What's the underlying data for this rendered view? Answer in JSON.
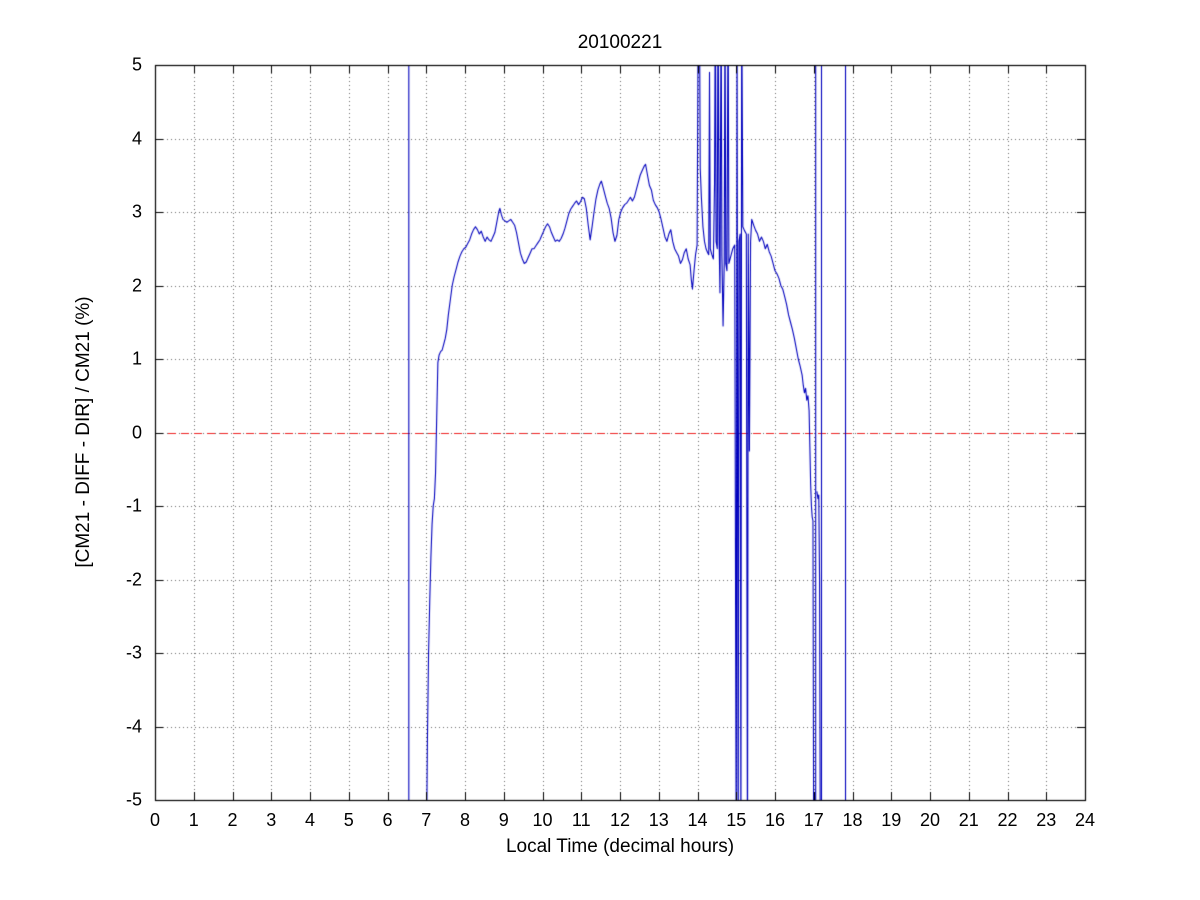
{
  "chart_data": {
    "type": "line",
    "title": "20100221",
    "xlabel": "Local Time (decimal hours)",
    "ylabel": "[CM21 - DIFF - DIR] / CM21 (%)",
    "xlim": [
      0,
      24
    ],
    "ylim": [
      -5,
      5
    ],
    "x_ticks": [
      0,
      1,
      2,
      3,
      4,
      5,
      6,
      7,
      8,
      9,
      10,
      11,
      12,
      13,
      14,
      15,
      16,
      17,
      18,
      19,
      20,
      21,
      22,
      23,
      24
    ],
    "y_ticks": [
      -5,
      -4,
      -3,
      -2,
      -1,
      0,
      1,
      2,
      3,
      4,
      5
    ],
    "grid": "dotted",
    "grid_color": "#666666",
    "axis_color": "#000000",
    "background": "#ffffff",
    "legend": "none",
    "zero_line": {
      "y": 0,
      "color": "#ee2222",
      "style": "dashed"
    },
    "vertical_spikes": {
      "color": "#0000bd",
      "x": [
        6.55,
        17.05,
        17.2,
        17.82
      ]
    },
    "series": [
      {
        "name": "(CM21 - DIFF - DIR) / CM21 percent difference",
        "color": "#0000bd",
        "points": [
          [
            7.0,
            -6
          ],
          [
            7.03,
            -4.2
          ],
          [
            7.06,
            -3.0
          ],
          [
            7.09,
            -2.3
          ],
          [
            7.12,
            -1.7
          ],
          [
            7.15,
            -1.25
          ],
          [
            7.18,
            -1.0
          ],
          [
            7.21,
            -0.9
          ],
          [
            7.24,
            -0.55
          ],
          [
            7.27,
            0.2
          ],
          [
            7.3,
            0.95
          ],
          [
            7.33,
            1.05
          ],
          [
            7.37,
            1.1
          ],
          [
            7.41,
            1.12
          ],
          [
            7.45,
            1.2
          ],
          [
            7.49,
            1.28
          ],
          [
            7.53,
            1.4
          ],
          [
            7.57,
            1.6
          ],
          [
            7.62,
            1.8
          ],
          [
            7.67,
            2.0
          ],
          [
            7.72,
            2.12
          ],
          [
            7.77,
            2.22
          ],
          [
            7.82,
            2.32
          ],
          [
            7.87,
            2.4
          ],
          [
            7.92,
            2.46
          ],
          [
            7.97,
            2.5
          ],
          [
            8.02,
            2.52
          ],
          [
            8.07,
            2.57
          ],
          [
            8.12,
            2.62
          ],
          [
            8.17,
            2.7
          ],
          [
            8.22,
            2.76
          ],
          [
            8.27,
            2.8
          ],
          [
            8.32,
            2.76
          ],
          [
            8.37,
            2.7
          ],
          [
            8.42,
            2.74
          ],
          [
            8.47,
            2.66
          ],
          [
            8.52,
            2.6
          ],
          [
            8.57,
            2.66
          ],
          [
            8.62,
            2.62
          ],
          [
            8.67,
            2.6
          ],
          [
            8.72,
            2.66
          ],
          [
            8.77,
            2.72
          ],
          [
            8.82,
            2.86
          ],
          [
            8.87,
            3.0
          ],
          [
            8.9,
            3.05
          ],
          [
            8.94,
            2.96
          ],
          [
            8.98,
            2.9
          ],
          [
            9.03,
            2.88
          ],
          [
            9.08,
            2.86
          ],
          [
            9.13,
            2.88
          ],
          [
            9.18,
            2.9
          ],
          [
            9.23,
            2.86
          ],
          [
            9.28,
            2.82
          ],
          [
            9.33,
            2.72
          ],
          [
            9.38,
            2.58
          ],
          [
            9.43,
            2.44
          ],
          [
            9.48,
            2.36
          ],
          [
            9.53,
            2.3
          ],
          [
            9.58,
            2.32
          ],
          [
            9.63,
            2.38
          ],
          [
            9.68,
            2.44
          ],
          [
            9.73,
            2.5
          ],
          [
            9.78,
            2.5
          ],
          [
            9.83,
            2.54
          ],
          [
            9.88,
            2.58
          ],
          [
            9.93,
            2.62
          ],
          [
            9.98,
            2.68
          ],
          [
            10.03,
            2.74
          ],
          [
            10.08,
            2.8
          ],
          [
            10.13,
            2.84
          ],
          [
            10.18,
            2.8
          ],
          [
            10.23,
            2.72
          ],
          [
            10.28,
            2.66
          ],
          [
            10.33,
            2.6
          ],
          [
            10.38,
            2.62
          ],
          [
            10.43,
            2.6
          ],
          [
            10.48,
            2.64
          ],
          [
            10.53,
            2.7
          ],
          [
            10.58,
            2.78
          ],
          [
            10.63,
            2.88
          ],
          [
            10.68,
            2.98
          ],
          [
            10.73,
            3.04
          ],
          [
            10.78,
            3.08
          ],
          [
            10.83,
            3.12
          ],
          [
            10.88,
            3.15
          ],
          [
            10.93,
            3.1
          ],
          [
            10.98,
            3.14
          ],
          [
            11.03,
            3.2
          ],
          [
            11.08,
            3.18
          ],
          [
            11.13,
            3.05
          ],
          [
            11.18,
            2.82
          ],
          [
            11.23,
            2.62
          ],
          [
            11.28,
            2.8
          ],
          [
            11.33,
            3.0
          ],
          [
            11.38,
            3.18
          ],
          [
            11.43,
            3.3
          ],
          [
            11.48,
            3.38
          ],
          [
            11.52,
            3.42
          ],
          [
            11.57,
            3.32
          ],
          [
            11.62,
            3.22
          ],
          [
            11.67,
            3.12
          ],
          [
            11.72,
            3.05
          ],
          [
            11.77,
            2.92
          ],
          [
            11.82,
            2.72
          ],
          [
            11.87,
            2.6
          ],
          [
            11.92,
            2.68
          ],
          [
            11.97,
            2.9
          ],
          [
            12.02,
            3.0
          ],
          [
            12.07,
            3.06
          ],
          [
            12.12,
            3.1
          ],
          [
            12.17,
            3.12
          ],
          [
            12.22,
            3.16
          ],
          [
            12.27,
            3.2
          ],
          [
            12.32,
            3.15
          ],
          [
            12.37,
            3.2
          ],
          [
            12.42,
            3.3
          ],
          [
            12.47,
            3.4
          ],
          [
            12.52,
            3.5
          ],
          [
            12.57,
            3.56
          ],
          [
            12.62,
            3.62
          ],
          [
            12.66,
            3.65
          ],
          [
            12.71,
            3.5
          ],
          [
            12.76,
            3.36
          ],
          [
            12.81,
            3.3
          ],
          [
            12.86,
            3.16
          ],
          [
            12.91,
            3.1
          ],
          [
            12.96,
            3.06
          ],
          [
            13.01,
            3.0
          ],
          [
            13.06,
            2.9
          ],
          [
            13.11,
            2.78
          ],
          [
            13.16,
            2.66
          ],
          [
            13.21,
            2.6
          ],
          [
            13.26,
            2.7
          ],
          [
            13.31,
            2.76
          ],
          [
            13.36,
            2.6
          ],
          [
            13.41,
            2.5
          ],
          [
            13.46,
            2.45
          ],
          [
            13.51,
            2.4
          ],
          [
            13.56,
            2.3
          ],
          [
            13.61,
            2.35
          ],
          [
            13.66,
            2.45
          ],
          [
            13.71,
            2.5
          ],
          [
            13.76,
            2.36
          ],
          [
            13.81,
            2.28
          ],
          [
            13.84,
            2.08
          ],
          [
            13.87,
            1.95
          ],
          [
            13.91,
            2.2
          ],
          [
            13.95,
            2.42
          ],
          [
            13.99,
            2.55
          ],
          [
            14.02,
            6
          ],
          [
            14.05,
            6
          ],
          [
            14.07,
            3.6
          ],
          [
            14.1,
            3.2
          ],
          [
            14.14,
            2.8
          ],
          [
            14.18,
            2.6
          ],
          [
            14.22,
            2.5
          ],
          [
            14.26,
            2.45
          ],
          [
            14.29,
            2.42
          ],
          [
            14.31,
            4.9
          ],
          [
            14.33,
            2.5
          ],
          [
            14.37,
            2.42
          ],
          [
            14.41,
            2.36
          ],
          [
            14.44,
            3.4
          ],
          [
            14.46,
            6
          ],
          [
            14.48,
            2.6
          ],
          [
            14.51,
            2.5
          ],
          [
            14.53,
            6
          ],
          [
            14.56,
            2.55
          ],
          [
            14.58,
            1.9
          ],
          [
            14.61,
            6
          ],
          [
            14.63,
            2.4
          ],
          [
            14.66,
            1.45
          ],
          [
            14.69,
            2.3
          ],
          [
            14.71,
            6
          ],
          [
            14.73,
            2.3
          ],
          [
            14.76,
            2.2
          ],
          [
            14.79,
            6
          ],
          [
            14.81,
            2.3
          ],
          [
            14.86,
            2.4
          ],
          [
            14.91,
            2.5
          ],
          [
            14.96,
            2.55
          ],
          [
            15.0,
            -6
          ],
          [
            15.02,
            6
          ],
          [
            15.05,
            -6
          ],
          [
            15.07,
            2.6
          ],
          [
            15.1,
            2.7
          ],
          [
            15.12,
            -6
          ],
          [
            15.14,
            6
          ],
          [
            15.17,
            2.8
          ],
          [
            15.21,
            2.75
          ],
          [
            15.26,
            2.7
          ],
          [
            15.29,
            -6
          ],
          [
            15.31,
            2.7
          ],
          [
            15.34,
            -0.25
          ],
          [
            15.37,
            2.6
          ],
          [
            15.4,
            2.9
          ],
          [
            15.45,
            2.82
          ],
          [
            15.5,
            2.75
          ],
          [
            15.55,
            2.7
          ],
          [
            15.6,
            2.6
          ],
          [
            15.65,
            2.66
          ],
          [
            15.7,
            2.6
          ],
          [
            15.75,
            2.5
          ],
          [
            15.8,
            2.56
          ],
          [
            15.85,
            2.46
          ],
          [
            15.9,
            2.4
          ],
          [
            15.95,
            2.3
          ],
          [
            16.0,
            2.2
          ],
          [
            16.05,
            2.16
          ],
          [
            16.1,
            2.1
          ],
          [
            16.15,
            2.0
          ],
          [
            16.2,
            1.95
          ],
          [
            16.25,
            1.85
          ],
          [
            16.3,
            1.74
          ],
          [
            16.35,
            1.6
          ],
          [
            16.4,
            1.5
          ],
          [
            16.45,
            1.4
          ],
          [
            16.5,
            1.28
          ],
          [
            16.55,
            1.14
          ],
          [
            16.6,
            1.0
          ],
          [
            16.65,
            0.9
          ],
          [
            16.7,
            0.78
          ],
          [
            16.73,
            0.64
          ],
          [
            16.76,
            0.54
          ],
          [
            16.79,
            0.6
          ],
          [
            16.82,
            0.44
          ],
          [
            16.85,
            0.5
          ],
          [
            16.88,
            0.3
          ],
          [
            16.9,
            -0.2
          ],
          [
            16.92,
            -0.7
          ],
          [
            16.94,
            -1.0
          ],
          [
            16.96,
            -1.15
          ],
          [
            16.98,
            -1.2
          ],
          [
            17.0,
            -6
          ],
          null,
          [
            17.08,
            -0.8
          ],
          [
            17.11,
            -0.9
          ],
          [
            17.13,
            -0.85
          ],
          [
            17.15,
            -2.0
          ],
          [
            17.17,
            -6
          ]
        ]
      }
    ]
  }
}
